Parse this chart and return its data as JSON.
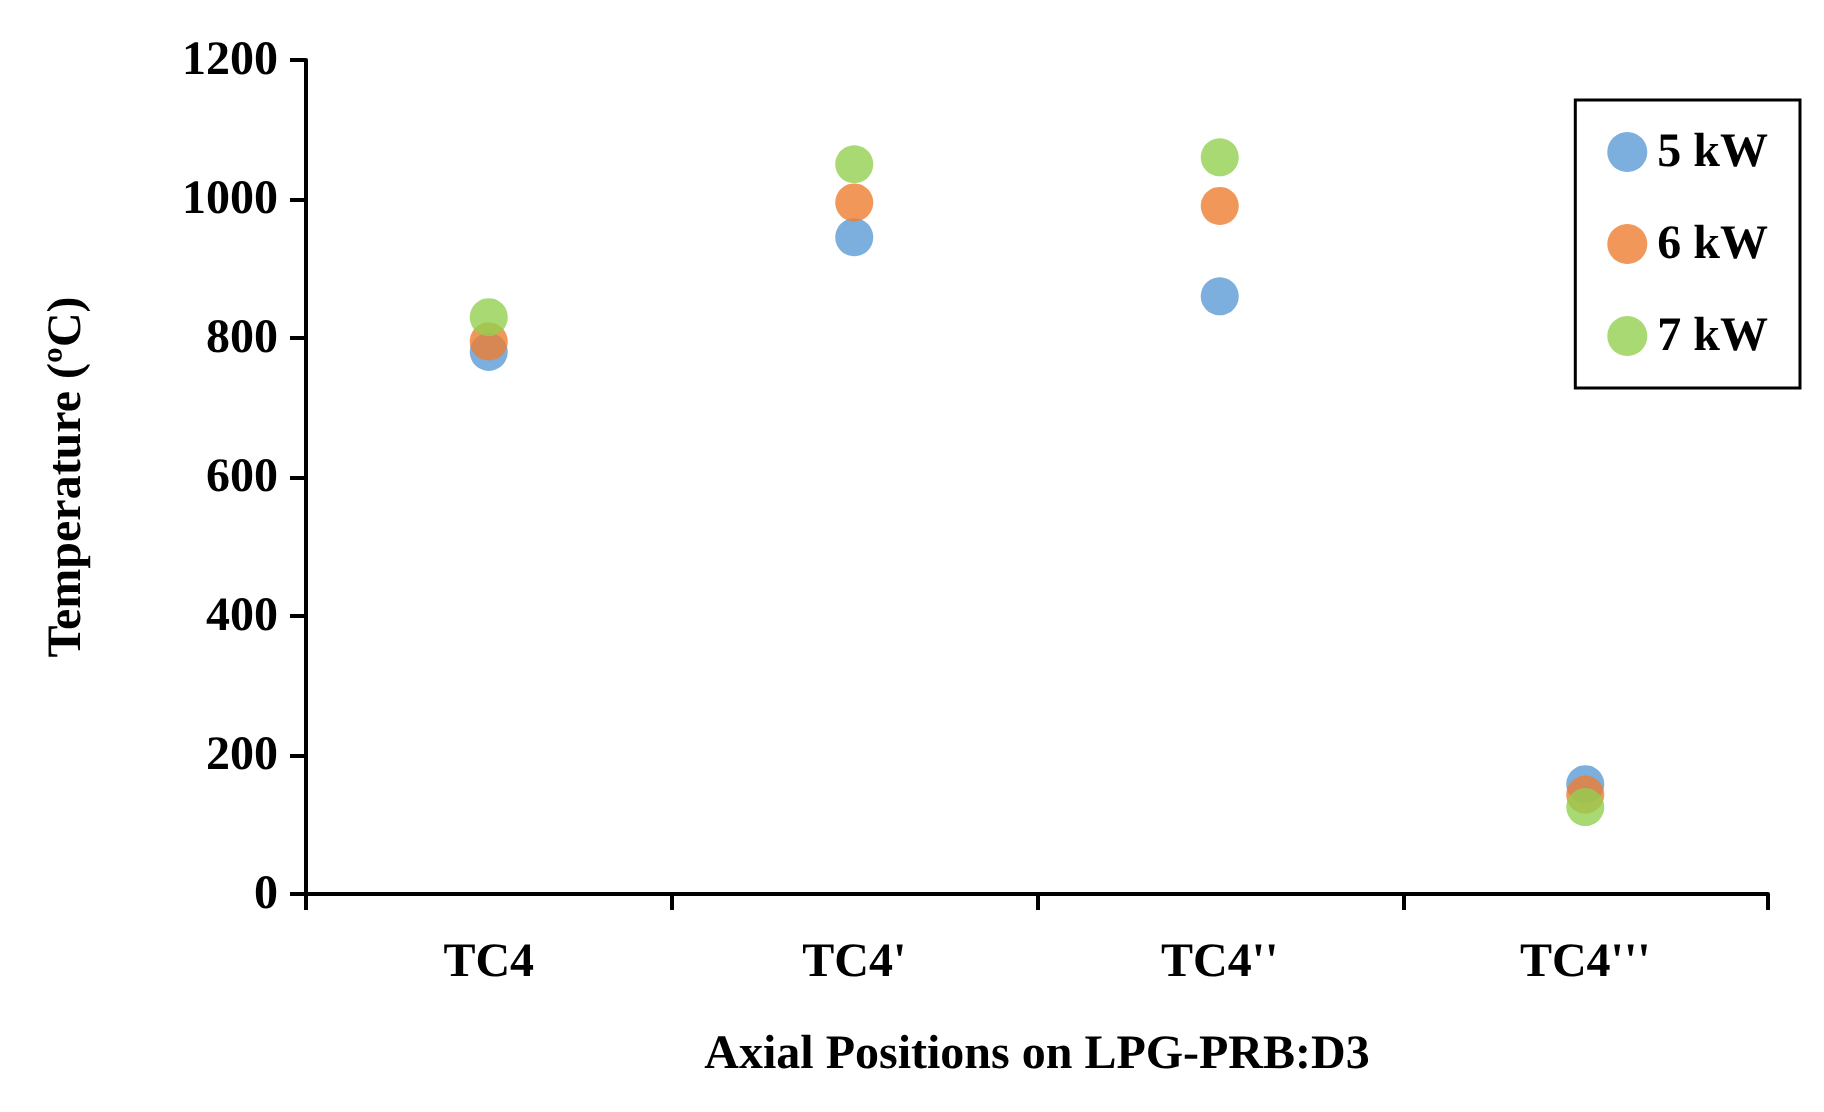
{
  "chart_data": {
    "type": "scatter",
    "xlabel": "Axial Positions on LPG-PRB:D3",
    "ylabel": "Temperature (ºC)",
    "categories": [
      "TC4",
      "TC4'",
      "TC4''",
      "TC4'''"
    ],
    "series": [
      {
        "name": "5 kW",
        "color": "#5b9bd5",
        "values": [
          780,
          945,
          860,
          158
        ]
      },
      {
        "name": "6 kW",
        "color": "#ed7d31",
        "values": [
          795,
          995,
          990,
          143
        ]
      },
      {
        "name": "7 kW",
        "color": "#92d050",
        "values": [
          830,
          1050,
          1060,
          125
        ]
      }
    ],
    "ylim": [
      0,
      1200
    ],
    "yticks": [
      0,
      200,
      400,
      600,
      800,
      1000,
      1200
    ],
    "grid": false,
    "legend": "top right",
    "marker": "circle"
  }
}
